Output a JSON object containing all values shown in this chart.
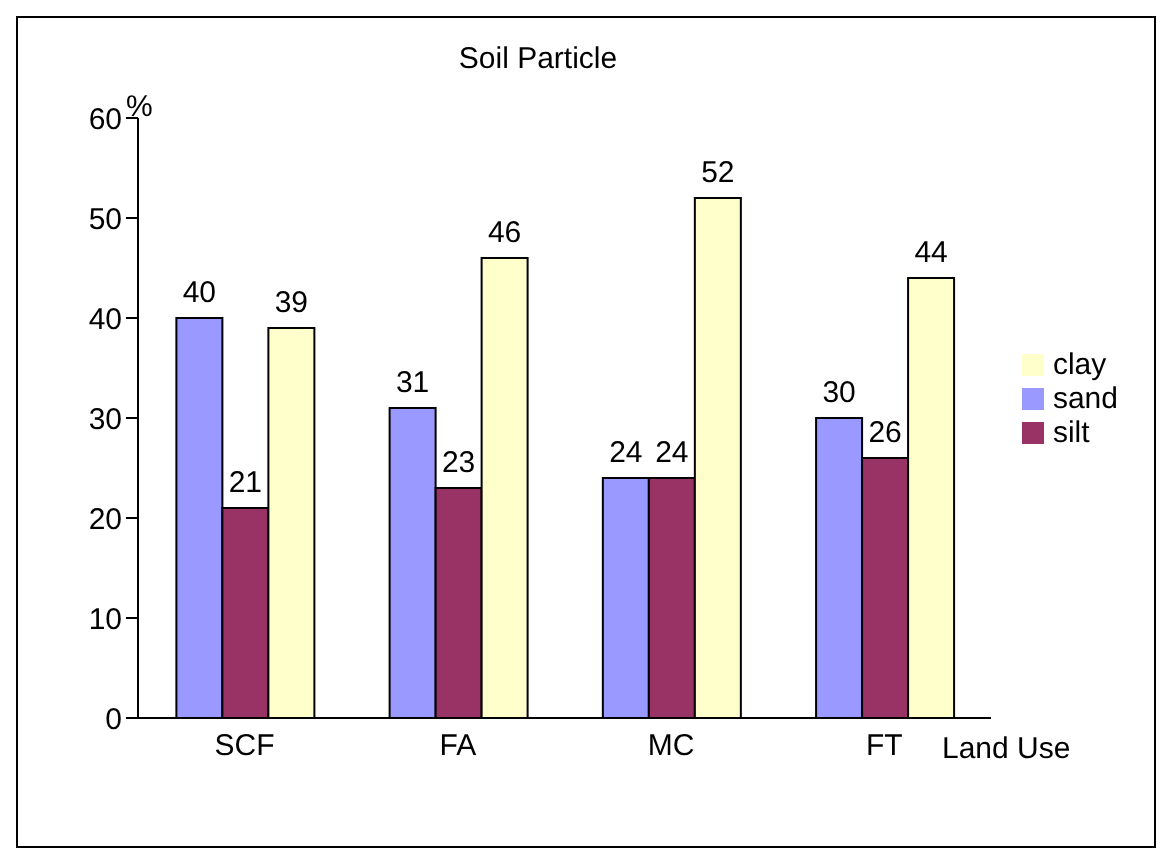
{
  "chart_data": {
    "type": "bar",
    "title": "Soil Particle",
    "xlabel": "Land Use",
    "ylabel": "%",
    "categories": [
      "SCF",
      "FA",
      "MC",
      "FT"
    ],
    "series": [
      {
        "name": "sand",
        "color": "#9999ff",
        "values": [
          40,
          31,
          24,
          30
        ]
      },
      {
        "name": "silt",
        "color": "#993366",
        "values": [
          21,
          23,
          24,
          26
        ]
      },
      {
        "name": "clay",
        "color": "#ffffcc",
        "values": [
          39,
          46,
          52,
          44
        ]
      }
    ],
    "ylim": [
      0,
      60
    ],
    "yticks": [
      0,
      10,
      20,
      30,
      40,
      50,
      60
    ],
    "grid": false,
    "legend": "right",
    "data_labels": true
  }
}
